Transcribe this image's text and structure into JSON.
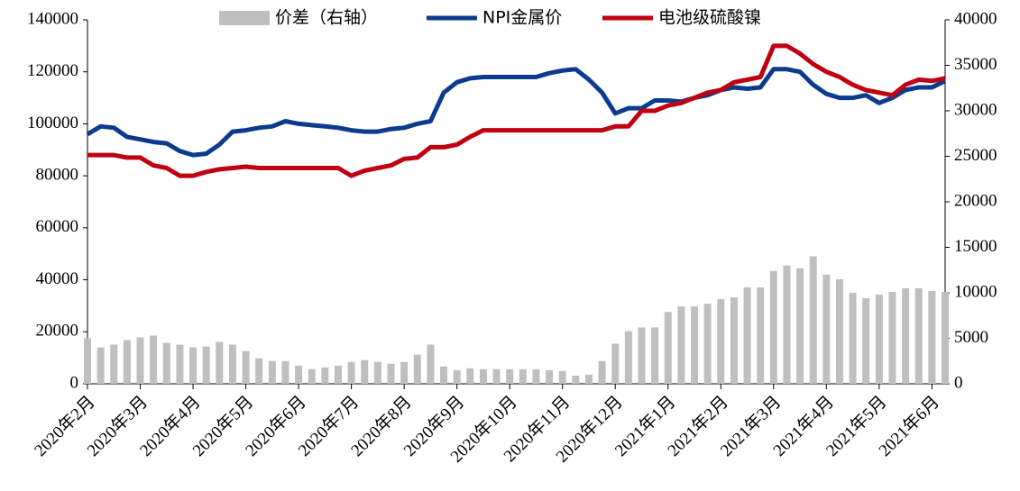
{
  "chart_data": {
    "type": "bar-line",
    "categories": [
      "2020年2月",
      null,
      null,
      null,
      "2020年3月",
      null,
      null,
      null,
      "2020年4月",
      null,
      null,
      null,
      "2020年5月",
      null,
      null,
      null,
      "2020年6月",
      null,
      null,
      null,
      "2020年7月",
      null,
      null,
      null,
      "2020年8月",
      null,
      null,
      null,
      "2020年9月",
      null,
      null,
      null,
      "2020年10月",
      null,
      null,
      null,
      "2020年11月",
      null,
      null,
      null,
      "2020年12月",
      null,
      null,
      null,
      "2021年1月",
      null,
      null,
      null,
      "2021年2月",
      null,
      null,
      null,
      "2021年3月",
      null,
      null,
      null,
      "2021年4月",
      null,
      null,
      null,
      "2021年5月",
      null,
      null,
      null,
      "2021年6月",
      null
    ],
    "series": [
      {
        "name": "价差（右轴）",
        "kind": "bar",
        "axis": "y2",
        "color": "#bfbfbf",
        "values": [
          5000,
          4000,
          4300,
          4800,
          5100,
          5300,
          4500,
          4300,
          4000,
          4100,
          4600,
          4300,
          3600,
          2800,
          2500,
          2500,
          2000,
          1600,
          1800,
          2000,
          2400,
          2600,
          2400,
          2200,
          2400,
          3200,
          4300,
          1900,
          1500,
          1700,
          1600,
          1600,
          1600,
          1600,
          1600,
          1500,
          1400,
          900,
          1000,
          2500,
          4400,
          5800,
          6200,
          6200,
          7900,
          8500,
          8500,
          8800,
          9300,
          9500,
          10600,
          10600,
          12400,
          13000,
          12700,
          14000,
          12000,
          11500,
          10000,
          9400,
          9800,
          10100,
          10500,
          10500,
          10200,
          10100
        ]
      },
      {
        "name": "NPI金属价",
        "kind": "line",
        "color": "#0b3b8f",
        "values": [
          96000,
          99000,
          98500,
          95000,
          94000,
          93000,
          92500,
          89500,
          88000,
          88500,
          92000,
          97000,
          97500,
          98500,
          99000,
          101000,
          100000,
          99500,
          99000,
          98500,
          97500,
          97000,
          97000,
          98000,
          98500,
          100000,
          101000,
          112000,
          116000,
          117500,
          118000,
          118000,
          118000,
          118000,
          118000,
          119500,
          120500,
          121000,
          117000,
          112000,
          104000,
          106000,
          106000,
          109000,
          109000,
          108500,
          110000,
          111000,
          113000,
          114000,
          113500,
          114000,
          121000,
          121000,
          120000,
          115000,
          111500,
          110000,
          110000,
          111000,
          108000,
          110000,
          113000,
          114000,
          114000,
          116500
        ]
      },
      {
        "name": "电池级硫酸镍",
        "kind": "line",
        "color": "#c00010",
        "values": [
          88000,
          88000,
          88000,
          87000,
          87000,
          84000,
          83000,
          80000,
          80000,
          81500,
          82500,
          83000,
          83500,
          83000,
          83000,
          83000,
          83000,
          83000,
          83000,
          83000,
          80000,
          82000,
          83000,
          84000,
          86500,
          87000,
          91000,
          91000,
          92000,
          95000,
          97500,
          97500,
          97500,
          97500,
          97500,
          97500,
          97500,
          97500,
          97500,
          97500,
          99000,
          99000,
          105000,
          105000,
          107000,
          108000,
          110000,
          112000,
          113000,
          116000,
          117000,
          118000,
          130000,
          130000,
          127000,
          123000,
          120000,
          118000,
          115000,
          113000,
          112000,
          111000,
          115000,
          117000,
          116500,
          117500
        ]
      }
    ],
    "ylim": [
      0,
      140000
    ],
    "yticks": [
      0,
      20000,
      40000,
      60000,
      80000,
      100000,
      120000,
      140000
    ],
    "y2lim": [
      0,
      40000
    ],
    "y2ticks": [
      0,
      5000,
      10000,
      15000,
      20000,
      25000,
      30000,
      35000,
      40000
    ],
    "legend": "top"
  }
}
